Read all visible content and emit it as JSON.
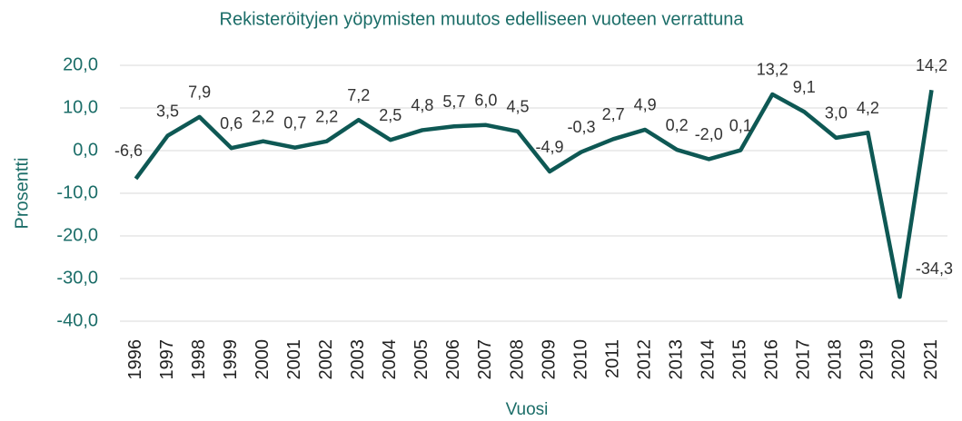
{
  "chart_data": {
    "type": "line",
    "title": "Rekisteröityjen yöpymisten muutos edelliseen vuoteen verrattuna",
    "x_label": "Vuosi",
    "y_label": "Prosentti",
    "categories": [
      "1996",
      "1997",
      "1998",
      "1999",
      "2000",
      "2001",
      "2002",
      "2003",
      "2004",
      "2005",
      "2006",
      "2007",
      "2008",
      "2009",
      "2010",
      "2011",
      "2012",
      "2013",
      "2014",
      "2015",
      "2016",
      "2017",
      "2018",
      "2019",
      "2020",
      "2021"
    ],
    "series": [
      {
        "name": "Prosentti",
        "color": "#0e5854",
        "values": [
          -6.6,
          3.5,
          7.9,
          0.6,
          2.2,
          0.7,
          2.2,
          7.2,
          2.5,
          4.8,
          5.7,
          6.0,
          4.5,
          -4.9,
          -0.3,
          2.7,
          4.9,
          0.2,
          -2.0,
          0.1,
          13.2,
          9.1,
          3.0,
          4.2,
          -34.3,
          14.2
        ],
        "value_labels": [
          "-6,6",
          "3,5",
          "7,9",
          "0,6",
          "2,2",
          "0,7",
          "2,2",
          "7,2",
          "2,5",
          "4,8",
          "5,7",
          "6,0",
          "4,5",
          "-4,9",
          "-0,3",
          "2,7",
          "4,9",
          "0,2",
          "-2,0",
          "0,1",
          "13,2",
          "9,1",
          "3,0",
          "4,2",
          "-34,3",
          "14,2"
        ]
      }
    ],
    "ylim": [
      -40,
      20
    ],
    "yticks": [
      {
        "value": -40,
        "label": "-40,0"
      },
      {
        "value": -30,
        "label": "-30,0"
      },
      {
        "value": -20,
        "label": "-20,0"
      },
      {
        "value": -10,
        "label": "-10,0"
      },
      {
        "value": 0,
        "label": "0,0"
      },
      {
        "value": 10,
        "label": "10,0"
      },
      {
        "value": 20,
        "label": "20,0"
      }
    ],
    "grid": true
  }
}
